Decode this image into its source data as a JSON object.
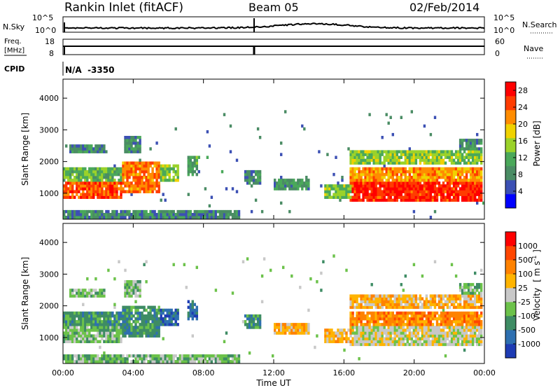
{
  "header": {
    "station_title": "Rankin Inlet (fitACF)",
    "beam_title": "Beam 05",
    "date_title": "02/Feb/2014"
  },
  "top_panels": {
    "nsky_label": "N.Sky",
    "nsearch_label": "N.Search",
    "noise_ticks_left": [
      "10^5",
      "10^0"
    ],
    "noise_ticks_right": [
      "10^5",
      "10^0"
    ],
    "freq_label_1": "Freq.",
    "freq_label_2": "[MHz]",
    "freq_ticks": [
      "18",
      "8"
    ],
    "nave_label": "Nave",
    "nave_ticks": [
      "60",
      "0"
    ],
    "cpid_label": "CPID",
    "cpid_value": "N/A  -3350"
  },
  "chart_data": [
    {
      "type": "heatmap",
      "title": "",
      "xlabel": "",
      "ylabel": "Slant Range [km]",
      "xlim": [
        0,
        24
      ],
      "ylim": [
        180,
        4600
      ],
      "y_ticks": [
        "1000",
        "2000",
        "3000",
        "4000"
      ],
      "colorbar": {
        "label": "Power [dB]",
        "ticks": [
          "4",
          "8",
          "12",
          "16",
          "20",
          "24",
          "28"
        ],
        "range": [
          0,
          30
        ],
        "colors": [
          "#0000ff",
          "#3c50b4",
          "#4a8c64",
          "#4aa85a",
          "#9bd22a",
          "#f0d200",
          "#ff8c00",
          "#ff3c00",
          "#ff0000"
        ]
      },
      "grid": false
    },
    {
      "type": "heatmap",
      "title": "",
      "xlabel": "Time UT",
      "ylabel": "Slant Range [km]",
      "xlim": [
        0,
        24
      ],
      "ylim": [
        180,
        4600
      ],
      "x_ticks": [
        "00:00",
        "04:00",
        "08:00",
        "12:00",
        "16:00",
        "20:00",
        "00:00"
      ],
      "y_ticks": [
        "1000",
        "2000",
        "3000",
        "4000"
      ],
      "colorbar": {
        "label": "Velocity",
        "unit": "m s",
        "unit_exp": "-1",
        "ticks": [
          "1000",
          "500",
          "100",
          "25",
          "-25",
          "-100",
          "-500",
          "-1000"
        ],
        "colors": [
          "#1e3cb4",
          "#2e6fb0",
          "#3e8c64",
          "#6cc24a",
          "#c8c8c8",
          "#ffb400",
          "#ff8200",
          "#ff4600",
          "#ff0000"
        ]
      },
      "grid": false
    }
  ]
}
